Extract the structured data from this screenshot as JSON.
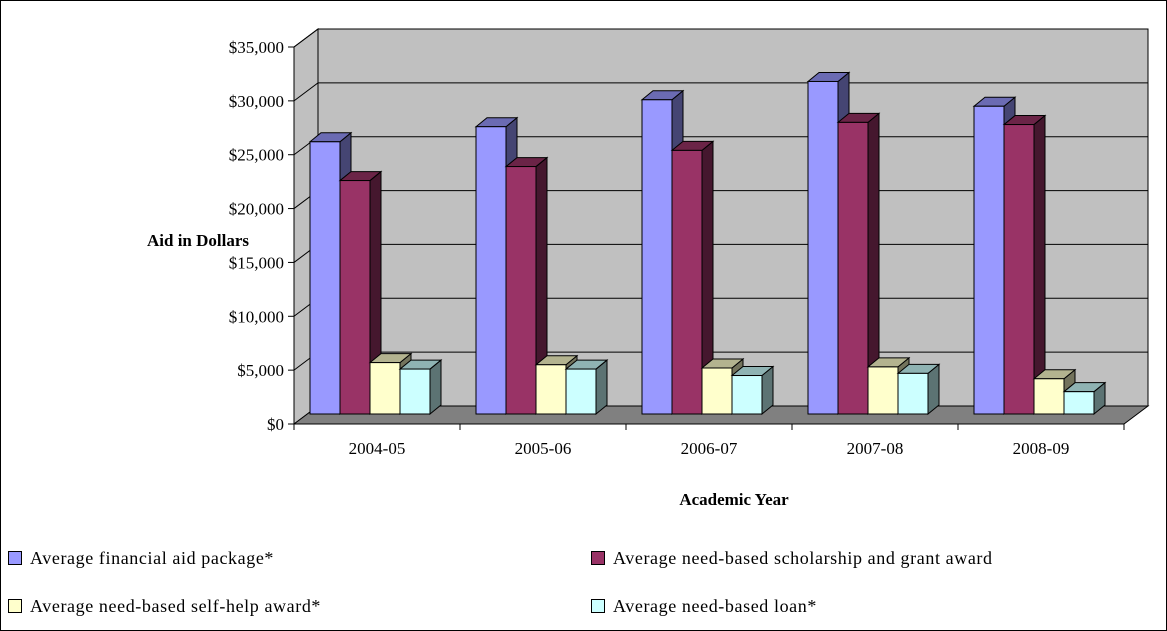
{
  "chart_data": {
    "type": "bar",
    "style": "3d-clustered-column",
    "categories": [
      "2004-05",
      "2005-06",
      "2006-07",
      "2007-08",
      "2008-09"
    ],
    "series": [
      {
        "name": "Average financial aid package*",
        "color": "#9999ff",
        "values": [
          26200,
          27600,
          30100,
          31800,
          29500
        ]
      },
      {
        "name": "Average need-based scholarship and grant award",
        "color": "#993366",
        "values": [
          22600,
          23900,
          25400,
          28000,
          27800
        ]
      },
      {
        "name": "Average need-based self-help award*",
        "color": "#ffffcc",
        "values": [
          5700,
          5500,
          5200,
          5300,
          4200
        ]
      },
      {
        "name": "Average need-based loan*",
        "color": "#ccffff",
        "values": [
          5100,
          5100,
          4500,
          4700,
          3000
        ]
      }
    ],
    "y_ticks": [
      "$0",
      "$5,000",
      "$10,000",
      "$15,000",
      "$20,000",
      "$25,000",
      "$30,000",
      "$35,000"
    ],
    "ylim": [
      0,
      35000
    ],
    "xlabel": "Academic Year",
    "ylabel": "Aid in Dollars",
    "grid": true,
    "legend_position": "bottom",
    "wall_color": "#c0c0c0",
    "floor_color": "#808080"
  }
}
